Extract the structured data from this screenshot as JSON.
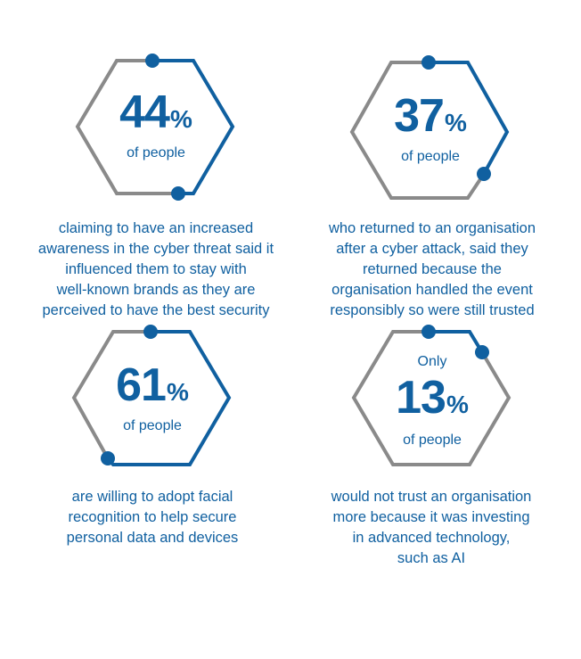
{
  "stats": [
    {
      "prefix": "",
      "number": "44",
      "percent_sign": "%",
      "label": "of people",
      "value_percent": 44,
      "caption_lines": [
        "claiming to have an increased",
        "awareness in the cyber threat said it",
        "influenced them to stay with",
        "well-known brands as they are",
        "perceived to have the best security"
      ]
    },
    {
      "prefix": "",
      "number": "37",
      "percent_sign": "%",
      "label": "of people",
      "value_percent": 37,
      "caption_lines": [
        "who returned to an organisation",
        "after a cyber attack, said they",
        "returned because the",
        "organisation handled the event",
        "responsibly so were still trusted"
      ]
    },
    {
      "prefix": "",
      "number": "61",
      "percent_sign": "%",
      "label": "of people",
      "value_percent": 61,
      "caption_lines": [
        "are willing to adopt facial",
        "recognition to help secure",
        "personal data and devices"
      ]
    },
    {
      "prefix": "Only",
      "number": "13",
      "percent_sign": "%",
      "label": "of people",
      "value_percent": 13,
      "caption_lines": [
        "would not trust an organisation",
        "more because it was investing",
        "in advanced technology,",
        "such as AI"
      ]
    }
  ],
  "colors": {
    "accent": "#1060a0",
    "neutral": "#8a8a8a"
  }
}
